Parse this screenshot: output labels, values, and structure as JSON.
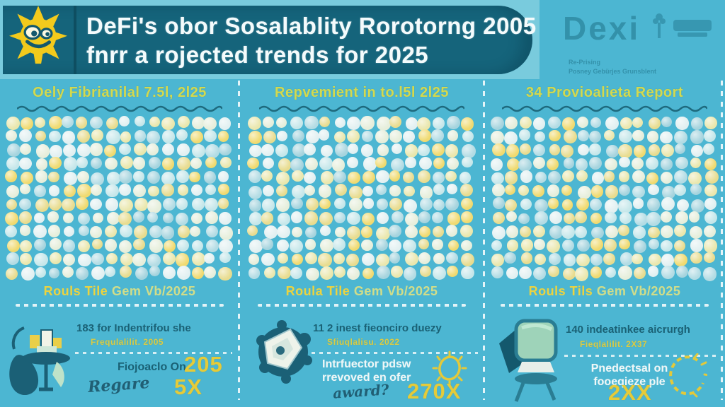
{
  "page": {
    "background": "#4cb6d2"
  },
  "header": {
    "line1": "DeFi's obor Sosalablity Rorotorng 2005",
    "line2": "fnrr a rojected trends for 2025",
    "banner_color": "#15647b",
    "mascot_icon": "sun-mascot-icon"
  },
  "watermark": {
    "brand": "Dexi",
    "tag_line1": "Re-Prising",
    "tag_line2": "Posney Gebürjes Grunsblent"
  },
  "columns": [
    {
      "header": "Oely Fibrianilal 7.5l, 2l25",
      "mid_bold": "Rouls Tile",
      "mid_rest": "Gem Vb/2025",
      "stat_title": "183 for Indentrifou she",
      "stat_sub": "Frequlalilit. 2005",
      "note_line1": "Fiojoaclo On",
      "note_line2": "",
      "script_word": "Regare",
      "big_value": "205",
      "big_value2": "5X",
      "illustration": "desk-table-illustration"
    },
    {
      "header": "Repvemient in to.l5l 2l25",
      "mid_bold": "Roula Tile",
      "mid_rest": "Gem Vb/2025",
      "stat_title": "11 2 inest fieonciro duezy",
      "stat_sub": "Sfiuqlalisu. 2022",
      "note_line1": "Intrfuector pdsw",
      "note_line2": "rrevoved en ofer",
      "script_word": "award?",
      "big_value": "270X",
      "big_value2": "",
      "illustration": "crumpled-map-illustration"
    },
    {
      "header": "34 Provioalieta Report",
      "mid_bold": "Rouls Tils",
      "mid_rest": "Gem Vb/2025",
      "stat_title": "140 indeatinkee aicrurgh",
      "stat_sub": "Fieqlalilit. 2X37",
      "note_line1": "Pnedectsal on",
      "note_line2": "fooeqieze ple",
      "script_word": "",
      "big_value": "2XX",
      "big_value2": "",
      "illustration": "computer-monitor-illustration"
    }
  ],
  "dot_grid": {
    "rows": 12,
    "cols": 16,
    "palette": [
      "#b3dce4",
      "#eae7ad",
      "#e6eedb",
      "#f0da70",
      "#c6e7ea",
      "#e2f0f1",
      "#e8dc8f",
      "#a6d4de"
    ],
    "seeds": [
      101,
      202,
      303
    ]
  },
  "colors": {
    "accent_yellow": "#e5cb39",
    "header_yellow": "#d3d94f",
    "teal_dark": "#15647b",
    "teal_text": "#1a6175",
    "white_text": "#eef7f7"
  }
}
